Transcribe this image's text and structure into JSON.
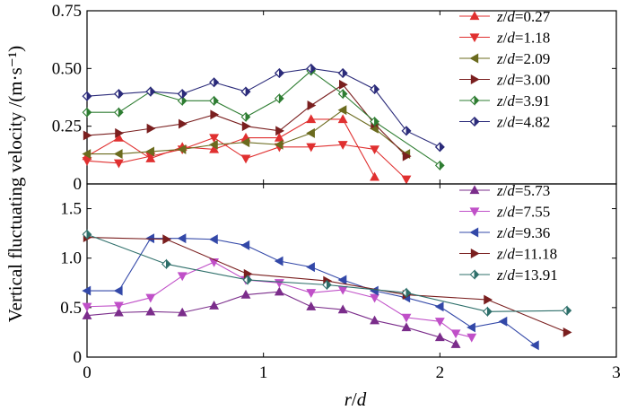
{
  "chart_data": {
    "type": "line",
    "ylabel": "Vertical fluctuating velocity /(m·s⁻¹)",
    "xlabel": "r/d",
    "xlim": [
      0,
      3
    ],
    "xticks": [
      {
        "value": 0,
        "label": "0"
      },
      {
        "value": 1,
        "label": "1"
      },
      {
        "value": 2,
        "label": "2"
      },
      {
        "value": 3,
        "label": "3"
      }
    ],
    "panels": [
      {
        "id": "top",
        "ylim": [
          0,
          0.75
        ],
        "yticks": [
          {
            "value": 0,
            "label": "0"
          },
          {
            "value": 0.25,
            "label": "0.25"
          },
          {
            "value": 0.5,
            "label": "0.50"
          },
          {
            "value": 0.75,
            "label": "0.75"
          }
        ],
        "legend_position": "top-right",
        "series": [
          {
            "name": "z/d=0.27",
            "color": "#e03030",
            "marker": "triangle-up",
            "x": [
              0,
              0.18,
              0.36,
              0.54,
              0.72,
              0.9,
              1.09,
              1.27,
              1.45,
              1.63
            ],
            "y": [
              0.12,
              0.2,
              0.11,
              0.16,
              0.15,
              0.2,
              0.2,
              0.28,
              0.28,
              0.03
            ]
          },
          {
            "name": "z/d=1.18",
            "color": "#e03030",
            "marker": "triangle-down",
            "x": [
              0,
              0.18,
              0.36,
              0.54,
              0.72,
              0.9,
              1.09,
              1.27,
              1.45,
              1.63,
              1.81
            ],
            "y": [
              0.1,
              0.09,
              0.12,
              0.15,
              0.2,
              0.11,
              0.16,
              0.16,
              0.17,
              0.15,
              0.02
            ]
          },
          {
            "name": "z/d=2.09",
            "color": "#6b6b1e",
            "marker": "triangle-left",
            "x": [
              0,
              0.18,
              0.36,
              0.54,
              0.72,
              0.9,
              1.09,
              1.27,
              1.45,
              1.63,
              1.81
            ],
            "y": [
              0.13,
              0.13,
              0.14,
              0.15,
              0.17,
              0.18,
              0.17,
              0.22,
              0.32,
              0.24,
              0.13
            ]
          },
          {
            "name": "z/d=3.00",
            "color": "#7a1f1f",
            "marker": "triangle-right",
            "x": [
              0,
              0.18,
              0.36,
              0.54,
              0.72,
              0.9,
              1.09,
              1.27,
              1.45,
              1.63,
              1.81
            ],
            "y": [
              0.21,
              0.22,
              0.24,
              0.26,
              0.3,
              0.25,
              0.23,
              0.34,
              0.43,
              0.26,
              0.12
            ]
          },
          {
            "name": "z/d=3.91",
            "color": "#2e7d32",
            "marker": "diamond",
            "x": [
              0,
              0.18,
              0.36,
              0.54,
              0.72,
              0.9,
              1.09,
              1.27,
              1.45,
              1.63,
              2.0
            ],
            "y": [
              0.31,
              0.31,
              0.4,
              0.36,
              0.36,
              0.29,
              0.37,
              0.49,
              0.39,
              0.27,
              0.08
            ]
          },
          {
            "name": "z/d=4.82",
            "color": "#2b2b7a",
            "marker": "diamond-open",
            "x": [
              0,
              0.18,
              0.36,
              0.54,
              0.72,
              0.9,
              1.09,
              1.27,
              1.45,
              1.63,
              1.81,
              2.0
            ],
            "y": [
              0.38,
              0.39,
              0.4,
              0.39,
              0.44,
              0.4,
              0.48,
              0.5,
              0.48,
              0.41,
              0.23,
              0.16
            ]
          }
        ]
      },
      {
        "id": "bottom",
        "ylim": [
          0,
          1.75
        ],
        "yticks": [
          {
            "value": 0,
            "label": "0"
          },
          {
            "value": 0.5,
            "label": "0.5"
          },
          {
            "value": 1.0,
            "label": "1.0"
          },
          {
            "value": 1.5,
            "label": "1.5"
          }
        ],
        "legend_position": "top-right",
        "series": [
          {
            "name": "z/d=5.73",
            "color": "#7b2d8b",
            "marker": "triangle-up",
            "x": [
              0,
              0.18,
              0.36,
              0.54,
              0.72,
              0.9,
              1.09,
              1.27,
              1.45,
              1.63,
              1.81,
              2.0,
              2.09
            ],
            "y": [
              0.42,
              0.45,
              0.46,
              0.45,
              0.52,
              0.63,
              0.66,
              0.51,
              0.48,
              0.37,
              0.3,
              0.2,
              0.13
            ]
          },
          {
            "name": "z/d=7.55",
            "color": "#c050c8",
            "marker": "triangle-down",
            "x": [
              0,
              0.18,
              0.36,
              0.54,
              0.72,
              0.9,
              1.09,
              1.27,
              1.45,
              1.63,
              1.81,
              2.0,
              2.09,
              2.18
            ],
            "y": [
              0.51,
              0.52,
              0.6,
              0.82,
              0.96,
              0.78,
              0.75,
              0.65,
              0.68,
              0.6,
              0.4,
              0.36,
              0.24,
              0.2
            ]
          },
          {
            "name": "z/d=9.36",
            "color": "#3348a8",
            "marker": "triangle-left",
            "x": [
              0,
              0.18,
              0.36,
              0.54,
              0.72,
              0.9,
              1.09,
              1.27,
              1.45,
              1.63,
              1.81,
              2.0,
              2.18,
              2.36,
              2.54
            ],
            "y": [
              0.67,
              0.67,
              1.2,
              1.2,
              1.19,
              1.13,
              0.97,
              0.91,
              0.78,
              0.67,
              0.6,
              0.51,
              0.3,
              0.36,
              0.12
            ]
          },
          {
            "name": "z/d=11.18",
            "color": "#7a1f1f",
            "marker": "triangle-right",
            "x": [
              0,
              0.45,
              0.91,
              1.36,
              1.81,
              2.27,
              2.72
            ],
            "y": [
              1.21,
              1.19,
              0.84,
              0.77,
              0.63,
              0.58,
              0.25
            ]
          },
          {
            "name": "z/d=13.91",
            "color": "#2e6f6a",
            "marker": "diamond",
            "x": [
              0,
              0.45,
              0.91,
              1.36,
              1.81,
              2.27,
              2.72
            ],
            "y": [
              1.24,
              0.94,
              0.78,
              0.73,
              0.65,
              0.46,
              0.47
            ]
          }
        ]
      }
    ]
  }
}
